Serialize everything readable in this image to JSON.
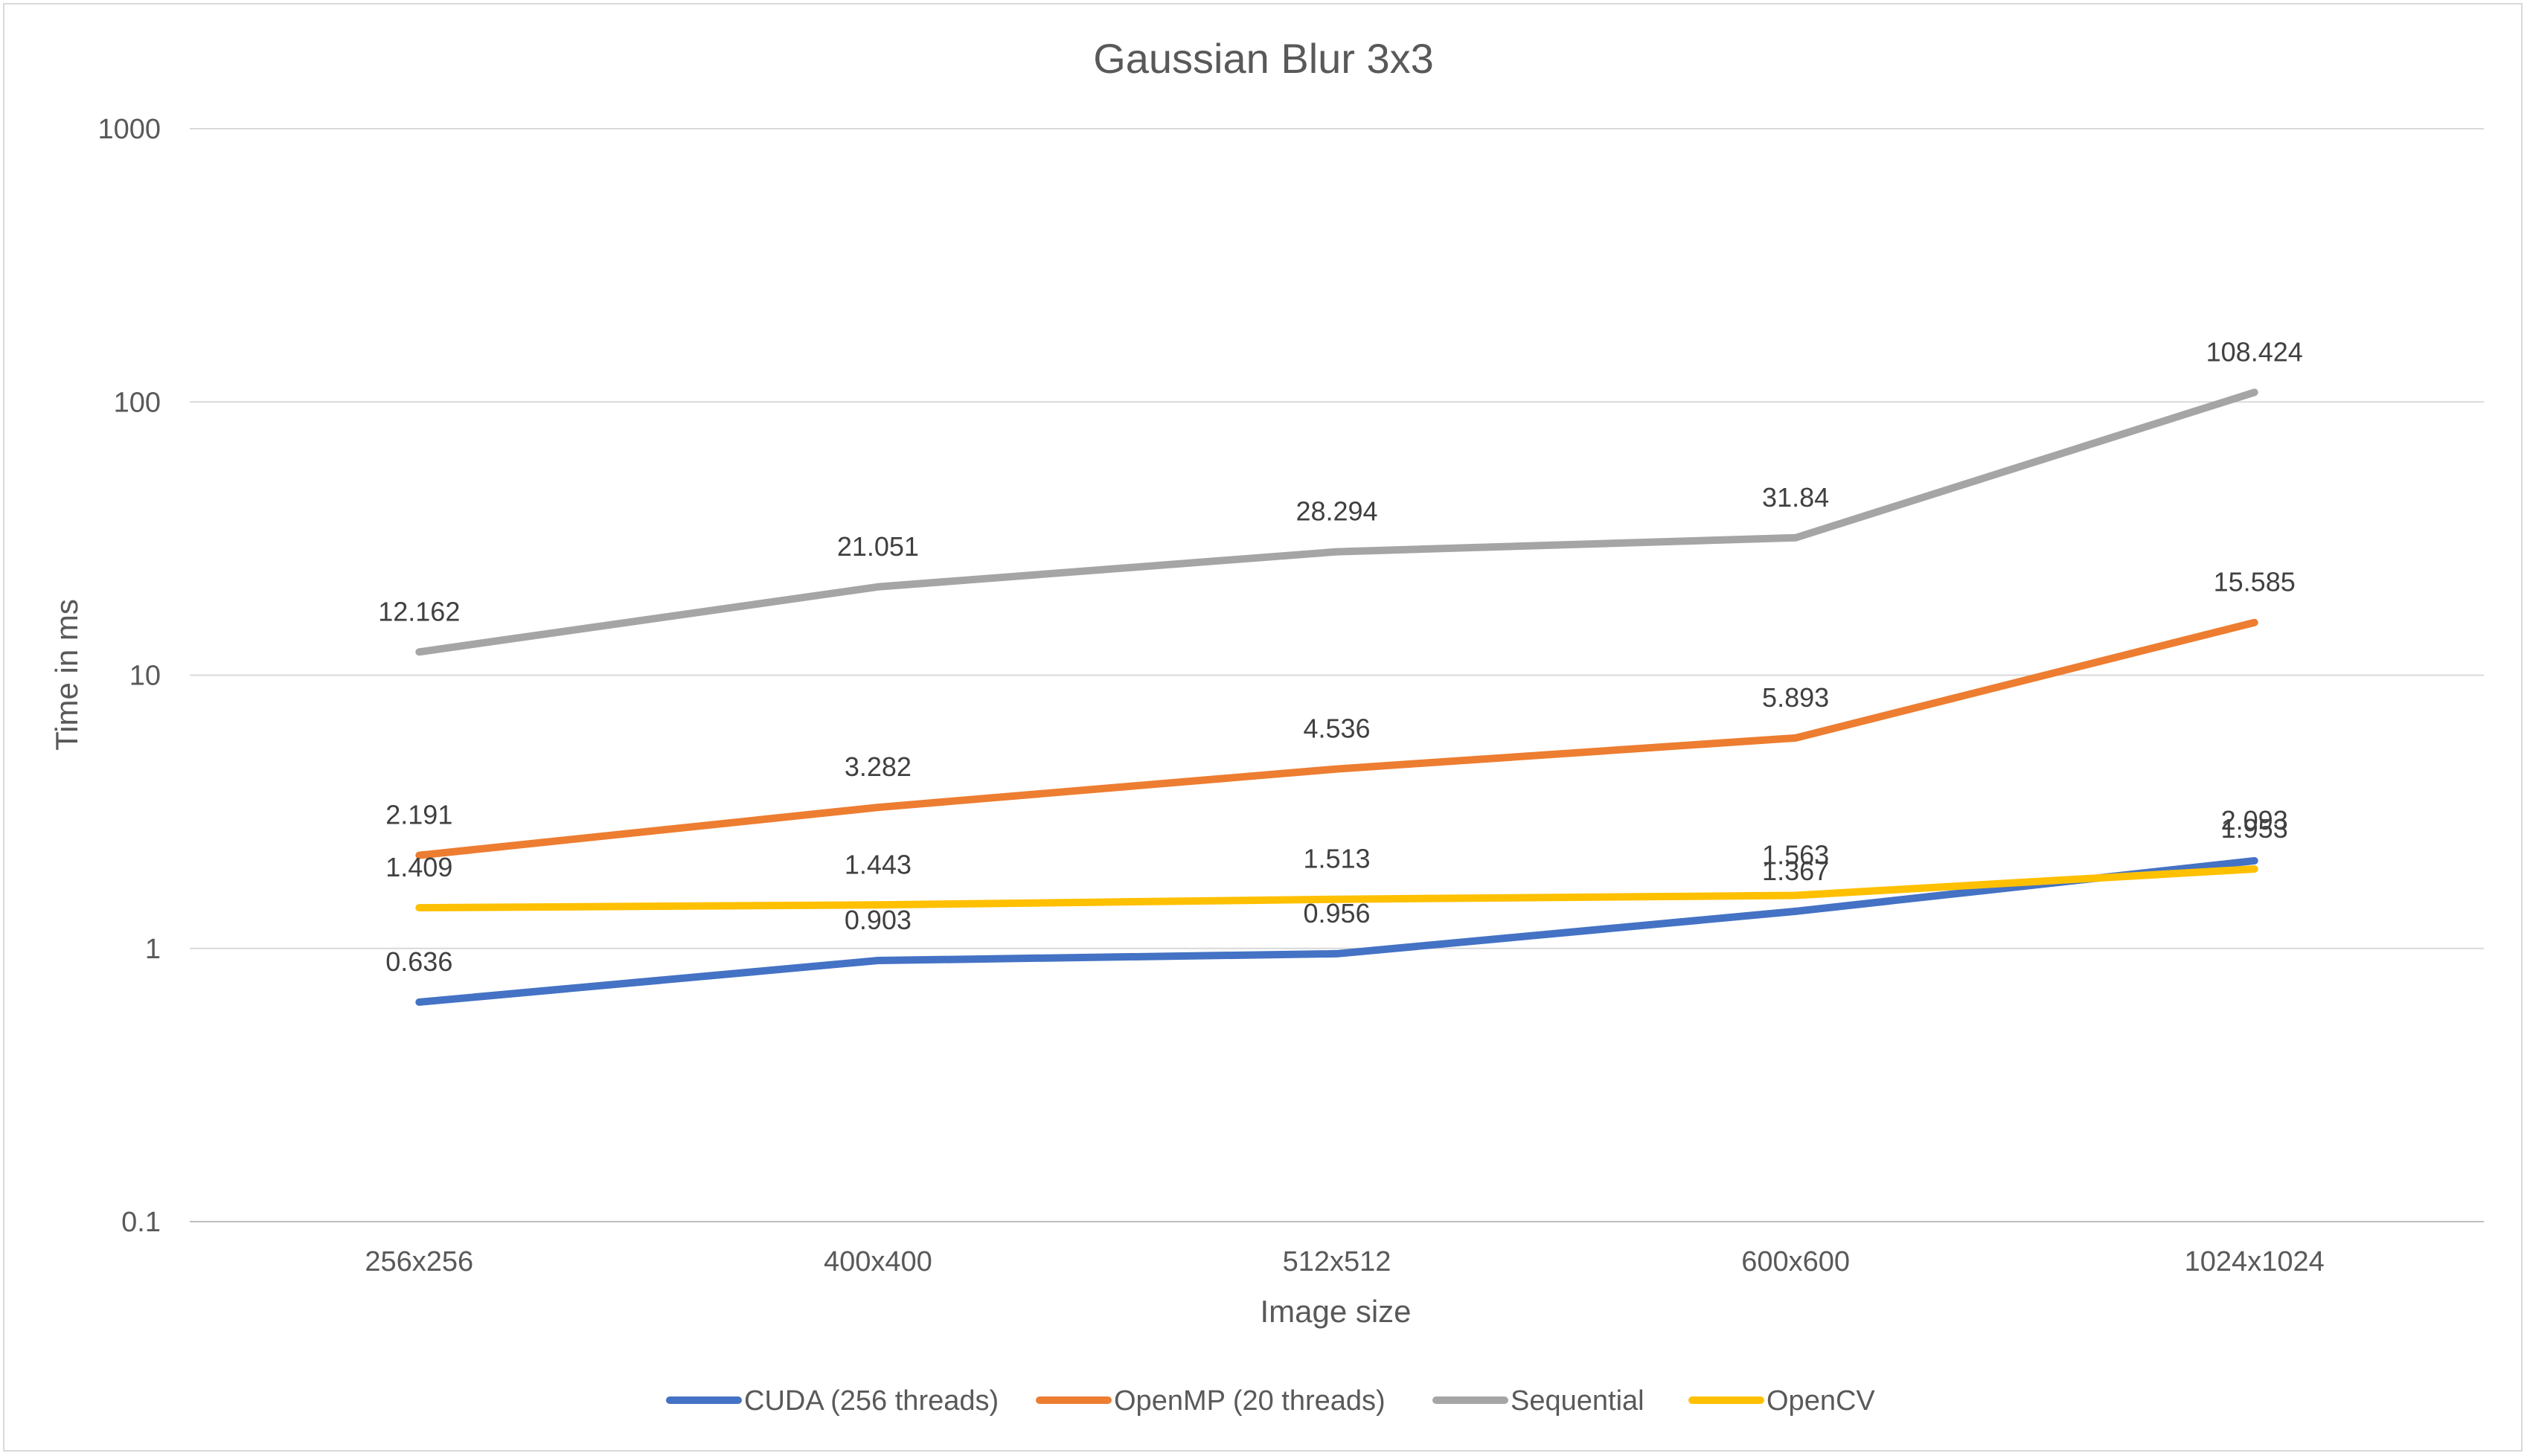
{
  "chart_data": {
    "type": "line",
    "title": "Gaussian Blur 3x3",
    "xlabel": "Image size",
    "ylabel": "Time in ms",
    "y_scale": "log",
    "ylim": [
      0.1,
      1000
    ],
    "y_ticks": [
      {
        "value": 0.1,
        "label": "0.1"
      },
      {
        "value": 1,
        "label": "1"
      },
      {
        "value": 10,
        "label": "10"
      },
      {
        "value": 100,
        "label": "100"
      },
      {
        "value": 1000,
        "label": "1000"
      }
    ],
    "categories": [
      "256x256",
      "400x400",
      "512x512",
      "600x600",
      "1024x1024"
    ],
    "grid": true,
    "legend": "bottom",
    "series": [
      {
        "name": "CUDA (256 threads)",
        "color": "#4472C4",
        "values": [
          0.636,
          0.903,
          0.956,
          1.367,
          2.093
        ],
        "labels": [
          "0.636",
          "0.903",
          "0.956",
          "1.367",
          "2.093"
        ]
      },
      {
        "name": "OpenMP (20 threads)",
        "color": "#ED7D31",
        "values": [
          2.191,
          3.282,
          4.536,
          5.893,
          15.585
        ],
        "labels": [
          "2.191",
          "3.282",
          "4.536",
          "5.893",
          "15.585"
        ]
      },
      {
        "name": "Sequential",
        "color": "#A5A5A5",
        "values": [
          12.162,
          21.051,
          28.294,
          31.84,
          108.424
        ],
        "labels": [
          "12.162",
          "21.051",
          "28.294",
          "31.84",
          "108.424"
        ]
      },
      {
        "name": "OpenCV",
        "color": "#FFC000",
        "values": [
          1.409,
          1.443,
          1.513,
          1.563,
          1.953
        ],
        "labels": [
          "1.409",
          "1.443",
          "1.513",
          "1.563",
          "1.953"
        ]
      }
    ]
  }
}
